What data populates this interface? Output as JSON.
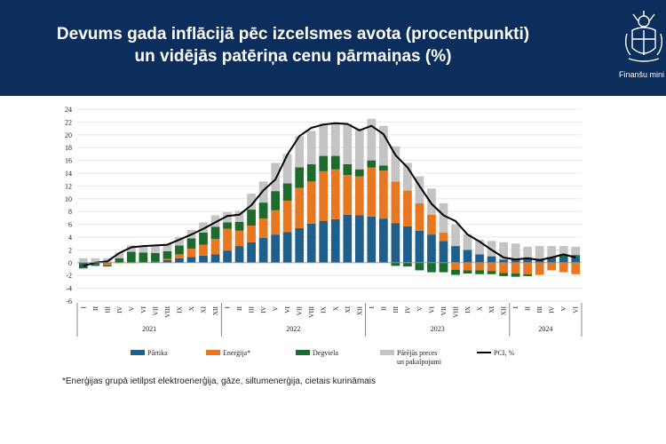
{
  "header": {
    "title_line1": "Devums gada inflācijā pēc izcelsmes avota (procentpunkti)",
    "title_line2": "un vidējās patēriņa cenu pārmaiņas (%)",
    "logo_text": "Finanšu mini"
  },
  "footnote": "*Enerģijas grupā ietilpst elektroenerģija, gāze, siltumenerģija, cietais kurināmais",
  "chart_data": {
    "type": "bar",
    "stacked": true,
    "ylim": [
      -6,
      24
    ],
    "yticks": [
      -6,
      -4,
      -2,
      0,
      2,
      4,
      6,
      8,
      10,
      12,
      14,
      16,
      18,
      20,
      22,
      24
    ],
    "grid": true,
    "legend_position": "bottom",
    "month_labels": [
      "I",
      "II",
      "III",
      "IV",
      "V",
      "VI",
      "VII",
      "VIII",
      "IX",
      "X",
      "XI",
      "XII"
    ],
    "years": [
      "2021",
      "2022",
      "2023",
      "2024"
    ],
    "categories": [
      "2021-I",
      "2021-II",
      "2021-III",
      "2021-IV",
      "2021-V",
      "2021-VI",
      "2021-VII",
      "2021-VIII",
      "2021-IX",
      "2021-X",
      "2021-XI",
      "2021-XII",
      "2022-I",
      "2022-II",
      "2022-III",
      "2022-IV",
      "2022-V",
      "2022-VI",
      "2022-VII",
      "2022-VIII",
      "2022-IX",
      "2022-X",
      "2022-XI",
      "2022-XII",
      "2023-I",
      "2023-II",
      "2023-III",
      "2023-IV",
      "2023-V",
      "2023-VI",
      "2023-VII",
      "2023-VIII",
      "2023-IX",
      "2023-X",
      "2023-XI",
      "2023-XII",
      "2024-I",
      "2024-II",
      "2024-III",
      "2024-IV",
      "2024-V",
      "2024-VI"
    ],
    "series": [
      {
        "name": "Pārtika",
        "color": "#1f5f8b",
        "values": [
          -0.3,
          -0.2,
          -0.1,
          0.0,
          0.0,
          0.1,
          0.2,
          0.4,
          0.7,
          0.9,
          1.1,
          1.3,
          1.9,
          2.6,
          3.2,
          3.9,
          4.4,
          4.8,
          5.4,
          6.1,
          6.5,
          6.8,
          7.5,
          7.4,
          7.2,
          6.9,
          6.2,
          5.7,
          5.0,
          4.4,
          3.4,
          2.6,
          2.0,
          1.3,
          1.0,
          0.5,
          0.6,
          0.6,
          0.6,
          0.7,
          0.8,
          1.0
        ]
      },
      {
        "name": "Enerģija*",
        "color": "#e87722",
        "values": [
          0.0,
          0.0,
          -0.3,
          -0.1,
          -0.1,
          0.0,
          0.0,
          0.2,
          0.6,
          1.3,
          1.7,
          2.4,
          3.4,
          2.4,
          2.6,
          3.0,
          3.8,
          4.9,
          6.3,
          6.6,
          7.8,
          7.8,
          6.2,
          6.1,
          7.7,
          7.5,
          6.5,
          5.6,
          4.3,
          3.1,
          1.3,
          -1.1,
          -1.2,
          -1.2,
          -1.3,
          -1.6,
          -1.7,
          -1.8,
          -1.9,
          -1.2,
          -1.5,
          -1.8
        ]
      },
      {
        "name": "Degviela",
        "color": "#1d6b2c",
        "values": [
          -0.6,
          -0.3,
          -0.2,
          0.7,
          1.7,
          1.5,
          1.3,
          1.2,
          1.4,
          1.6,
          1.9,
          1.9,
          1.0,
          1.4,
          2.5,
          2.5,
          3.0,
          2.7,
          3.2,
          2.7,
          2.4,
          2.1,
          1.7,
          1.1,
          1.1,
          0.8,
          -0.5,
          -0.6,
          -1.2,
          -1.5,
          -1.5,
          -0.8,
          -0.5,
          -0.6,
          -0.5,
          -0.5,
          -0.5,
          -0.3,
          0.0,
          0.2,
          0.4,
          0.2
        ]
      },
      {
        "name": "Pārējās preces\nun pakalpojumi",
        "color": "#c4c4c4",
        "values": [
          0.7,
          0.7,
          0.7,
          0.9,
          1.0,
          1.0,
          1.1,
          1.1,
          1.3,
          1.3,
          1.6,
          1.8,
          1.6,
          1.7,
          2.5,
          3.3,
          4.4,
          4.6,
          4.9,
          5.2,
          5.1,
          5.1,
          6.3,
          6.3,
          6.5,
          6.2,
          5.5,
          4.3,
          4.2,
          4.1,
          4.6,
          3.4,
          2.5,
          2.3,
          2.4,
          2.7,
          2.4,
          1.9,
          2.0,
          1.7,
          1.4,
          1.3
        ]
      },
      {
        "name": "PCI, %",
        "color": "#000000",
        "type": "line",
        "values": [
          -0.5,
          0.0,
          0.2,
          1.5,
          2.4,
          2.6,
          2.7,
          2.8,
          3.6,
          4.4,
          5.3,
          6.3,
          7.3,
          7.5,
          9.0,
          11.3,
          13.0,
          16.9,
          19.8,
          21.1,
          21.6,
          21.8,
          21.7,
          20.7,
          21.4,
          20.1,
          16.8,
          14.9,
          12.0,
          9.2,
          7.4,
          6.5,
          4.4,
          3.3,
          2.0,
          0.8,
          0.5,
          0.7,
          0.4,
          0.8,
          1.3,
          0.8
        ]
      }
    ]
  }
}
